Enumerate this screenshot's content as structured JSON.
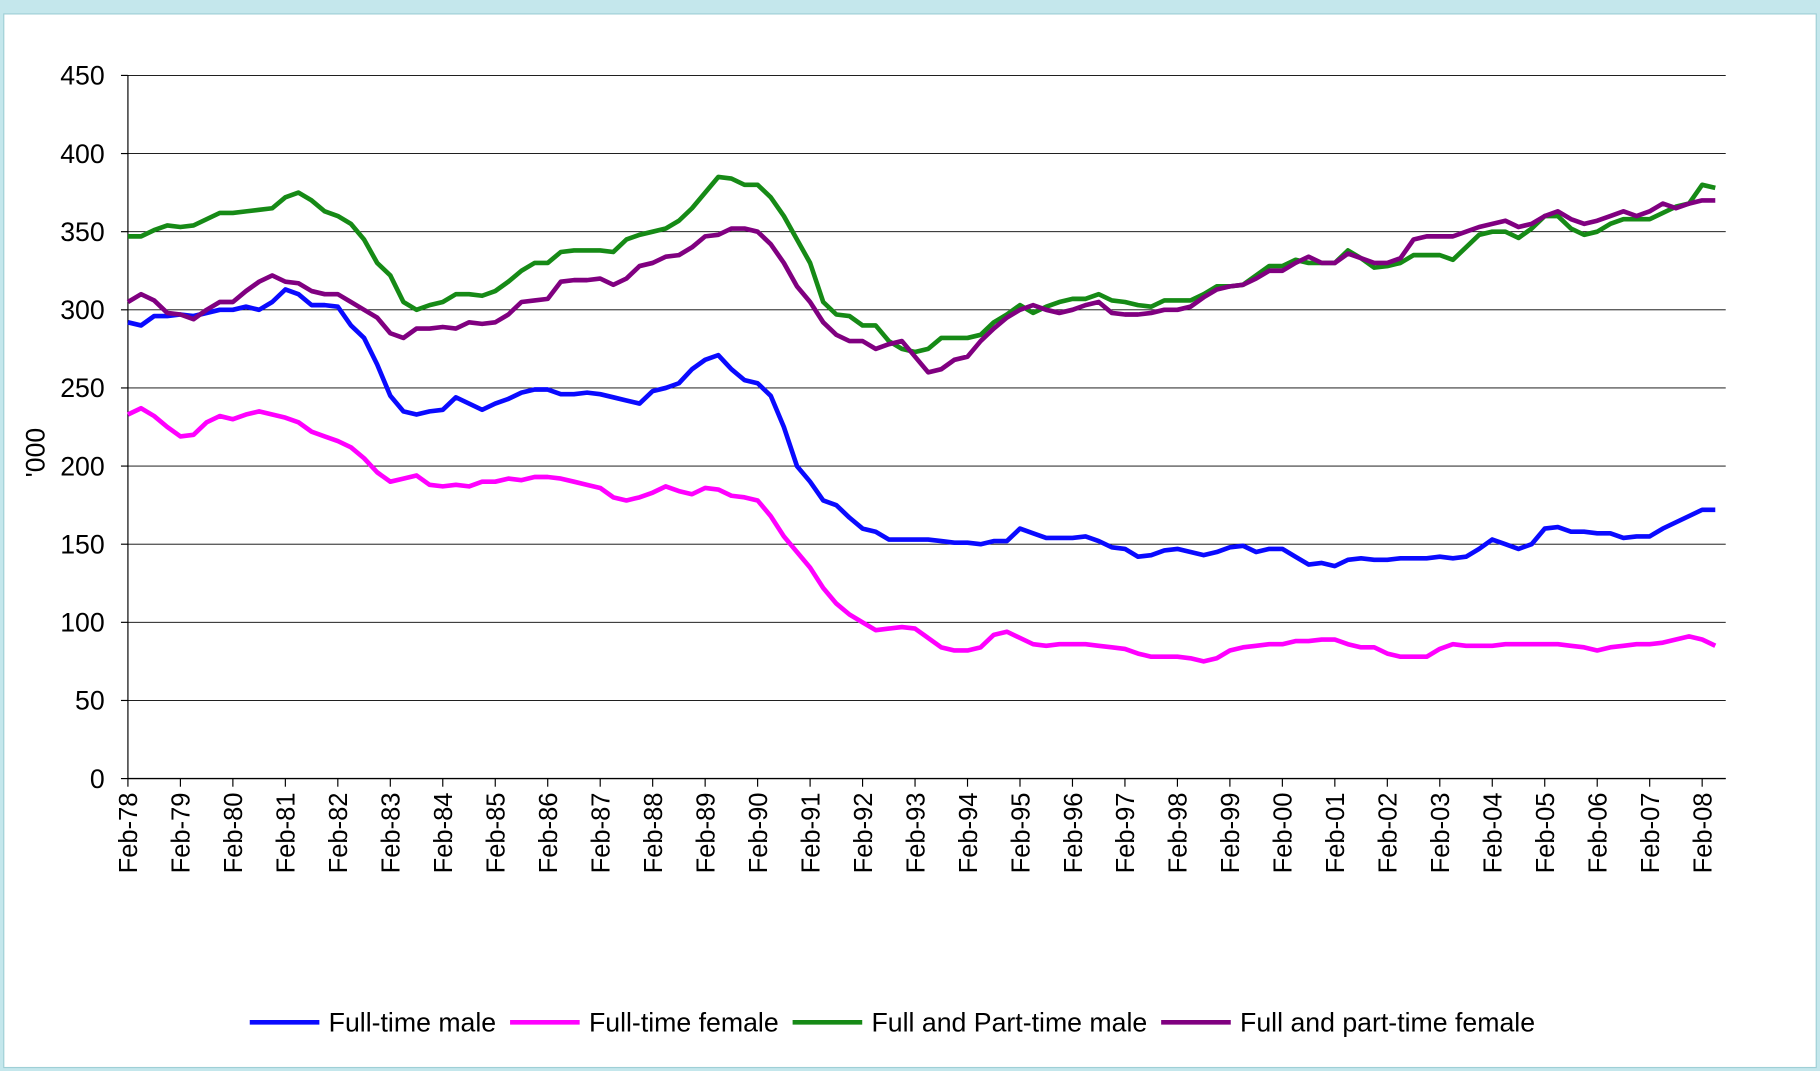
{
  "chart_data": {
    "type": "line",
    "y_label": "'000",
    "categories": [
      "Feb-78",
      null,
      null,
      null,
      "Feb-79",
      null,
      null,
      null,
      "Feb-80",
      null,
      null,
      null,
      "Feb-81",
      null,
      null,
      null,
      "Feb-82",
      null,
      null,
      null,
      "Feb-83",
      null,
      null,
      null,
      "Feb-84",
      null,
      null,
      null,
      "Feb-85",
      null,
      null,
      null,
      "Feb-86",
      null,
      null,
      null,
      "Feb-87",
      null,
      null,
      null,
      "Feb-88",
      null,
      null,
      null,
      "Feb-89",
      null,
      null,
      null,
      "Feb-90",
      null,
      null,
      null,
      "Feb-91",
      null,
      null,
      null,
      "Feb-92",
      null,
      null,
      null,
      "Feb-93",
      null,
      null,
      null,
      "Feb-94",
      null,
      null,
      null,
      "Feb-95",
      null,
      null,
      null,
      "Feb-96",
      null,
      null,
      null,
      "Feb-97",
      null,
      null,
      null,
      "Feb-98",
      null,
      null,
      null,
      "Feb-99",
      null,
      null,
      null,
      "Feb-00",
      null,
      null,
      null,
      "Feb-01",
      null,
      null,
      null,
      "Feb-02",
      null,
      null,
      null,
      "Feb-03",
      null,
      null,
      null,
      "Feb-04",
      null,
      null,
      null,
      "Feb-05",
      null,
      null,
      null,
      "Feb-06",
      null,
      null,
      null,
      "Feb-07",
      null,
      null,
      null,
      "Feb-08",
      null
    ],
    "series": [
      {
        "name": "Full-time male",
        "color": "#0a0aff",
        "values": [
          292,
          290,
          296,
          296,
          297,
          296,
          298,
          300,
          300,
          302,
          300,
          305,
          313,
          310,
          303,
          303,
          302,
          290,
          282,
          265,
          245,
          235,
          233,
          235,
          236,
          244,
          240,
          236,
          240,
          243,
          247,
          249,
          249,
          246,
          246,
          247,
          246,
          244,
          242,
          240,
          248,
          250,
          253,
          262,
          268,
          271,
          262,
          255,
          253,
          245,
          225,
          200,
          190,
          178,
          175,
          167,
          160,
          158,
          153,
          153,
          153,
          153,
          152,
          151,
          151,
          150,
          152,
          152,
          160,
          157,
          154,
          154,
          154,
          155,
          152,
          148,
          147,
          142,
          143,
          146,
          147,
          145,
          143,
          145,
          148,
          149,
          145,
          147,
          147,
          142,
          137,
          138,
          136,
          140,
          141,
          140,
          140,
          141,
          141,
          141,
          142,
          141,
          142,
          147,
          153,
          150,
          147,
          150,
          160,
          161,
          158,
          158,
          157,
          157,
          154,
          155,
          155,
          160,
          164,
          168,
          172,
          172
        ]
      },
      {
        "name": "Full-time female",
        "color": "#ff00ff",
        "values": [
          233,
          237,
          232,
          225,
          219,
          220,
          228,
          232,
          230,
          233,
          235,
          233,
          231,
          228,
          222,
          219,
          216,
          212,
          205,
          196,
          190,
          192,
          194,
          188,
          187,
          188,
          187,
          190,
          190,
          192,
          191,
          193,
          193,
          192,
          190,
          188,
          186,
          180,
          178,
          180,
          183,
          187,
          184,
          182,
          186,
          185,
          181,
          180,
          178,
          168,
          155,
          145,
          135,
          122,
          112,
          105,
          100,
          95,
          96,
          97,
          96,
          90,
          84,
          82,
          82,
          84,
          92,
          94,
          90,
          86,
          85,
          86,
          86,
          86,
          85,
          84,
          83,
          80,
          78,
          78,
          78,
          77,
          75,
          77,
          82,
          84,
          85,
          86,
          86,
          88,
          88,
          89,
          89,
          86,
          84,
          84,
          80,
          78,
          78,
          78,
          83,
          86,
          85,
          85,
          85,
          86,
          86,
          86,
          86,
          86,
          85,
          84,
          82,
          84,
          85,
          86,
          86,
          87,
          89,
          91,
          89,
          85
        ]
      },
      {
        "name": "Full and Part-time male",
        "color": "#168a16",
        "values": [
          347,
          347,
          351,
          354,
          353,
          354,
          358,
          362,
          362,
          363,
          364,
          365,
          372,
          375,
          370,
          363,
          360,
          355,
          345,
          330,
          322,
          305,
          300,
          303,
          305,
          310,
          310,
          309,
          312,
          318,
          325,
          330,
          330,
          337,
          338,
          338,
          338,
          337,
          345,
          348,
          350,
          352,
          357,
          365,
          375,
          385,
          384,
          380,
          380,
          372,
          360,
          345,
          330,
          305,
          297,
          296,
          290,
          290,
          280,
          275,
          273,
          275,
          282,
          282,
          282,
          284,
          292,
          297,
          303,
          298,
          302,
          305,
          307,
          307,
          310,
          306,
          305,
          303,
          302,
          306,
          306,
          306,
          310,
          315,
          315,
          316,
          322,
          328,
          328,
          332,
          330,
          330,
          330,
          338,
          333,
          327,
          328,
          330,
          335,
          335,
          335,
          332,
          340,
          348,
          350,
          350,
          346,
          352,
          360,
          360,
          352,
          348,
          350,
          355,
          358,
          358,
          358,
          362,
          366,
          368,
          380,
          378
        ]
      },
      {
        "name": "Full and part-time female",
        "color": "#800080",
        "values": [
          305,
          310,
          306,
          298,
          297,
          294,
          300,
          305,
          305,
          312,
          318,
          322,
          318,
          317,
          312,
          310,
          310,
          305,
          300,
          295,
          285,
          282,
          288,
          288,
          289,
          288,
          292,
          291,
          292,
          297,
          305,
          306,
          307,
          318,
          319,
          319,
          320,
          316,
          320,
          328,
          330,
          334,
          335,
          340,
          347,
          348,
          352,
          352,
          350,
          342,
          330,
          315,
          305,
          292,
          284,
          280,
          280,
          275,
          278,
          280,
          270,
          260,
          262,
          268,
          270,
          280,
          288,
          295,
          300,
          303,
          300,
          298,
          300,
          303,
          305,
          298,
          297,
          297,
          298,
          300,
          300,
          302,
          308,
          313,
          315,
          316,
          320,
          325,
          325,
          330,
          334,
          330,
          330,
          336,
          333,
          330,
          330,
          333,
          345,
          347,
          347,
          347,
          350,
          353,
          355,
          357,
          353,
          355,
          360,
          363,
          358,
          355,
          357,
          360,
          363,
          360,
          363,
          368,
          365,
          368,
          370,
          370
        ]
      }
    ],
    "ylim": [
      0,
      450
    ],
    "yticks": [
      0,
      50,
      100,
      150,
      200,
      250,
      300,
      350,
      400,
      450
    ],
    "grid": true,
    "legend": "bottom"
  }
}
